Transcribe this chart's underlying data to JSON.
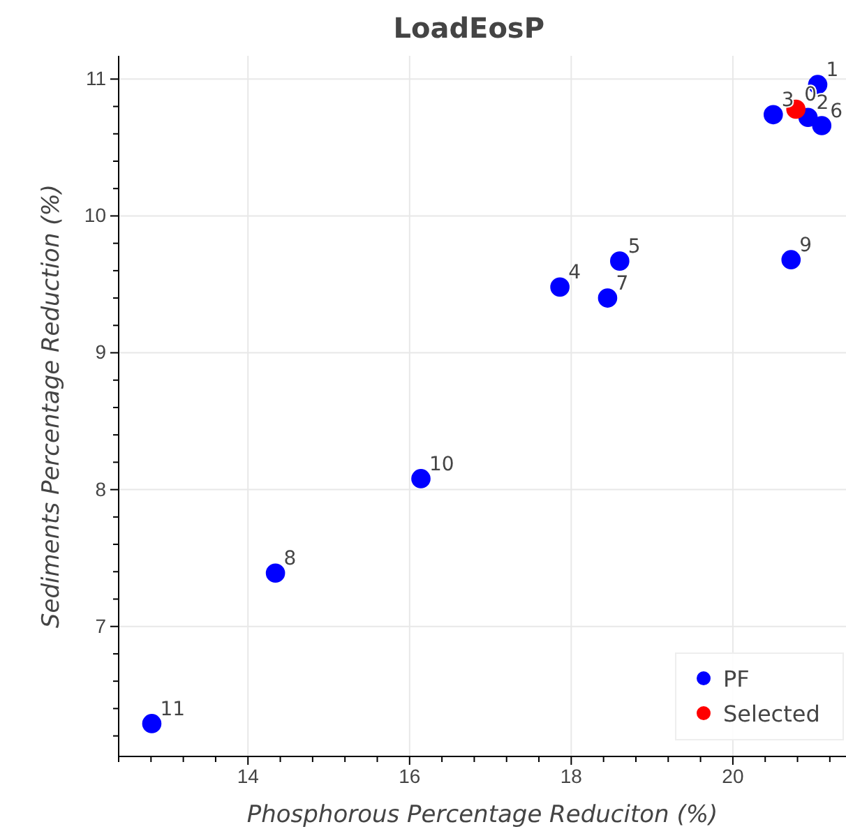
{
  "chart_data": {
    "type": "scatter",
    "title": "LoadEosP",
    "xlabel": "Phosphorous Percentage Reduciton (%)",
    "ylabel": "Sediments Percentage Reduction (%)",
    "xlim": [
      12.4,
      21.4
    ],
    "ylim": [
      6.05,
      11.17
    ],
    "xticks": [
      {
        "value": 12.4,
        "label": null
      },
      {
        "value": 12.8,
        "label": null
      },
      {
        "value": 13.2,
        "label": null
      },
      {
        "value": 13.6,
        "label": null
      },
      14,
      {
        "value": 14.4,
        "label": null
      },
      {
        "value": 14.8,
        "label": null
      },
      {
        "value": 15.2,
        "label": null
      },
      {
        "value": 15.6,
        "label": null
      },
      16,
      {
        "value": 16.4,
        "label": null
      },
      {
        "value": 16.8,
        "label": null
      },
      {
        "value": 17.2,
        "label": null
      },
      {
        "value": 17.6,
        "label": null
      },
      18,
      {
        "value": 18.4,
        "label": null
      },
      {
        "value": 18.8,
        "label": null
      },
      {
        "value": 19.2,
        "label": null
      },
      {
        "value": 19.6,
        "label": null
      },
      20,
      {
        "value": 20.4,
        "label": null
      },
      {
        "value": 20.8,
        "label": null
      },
      {
        "value": 21.2,
        "label": null
      }
    ],
    "yticks": [
      {
        "value": 6.2,
        "label": null
      },
      {
        "value": 6.4,
        "label": null
      },
      {
        "value": 6.6,
        "label": null
      },
      {
        "value": 6.8,
        "label": null
      },
      7,
      {
        "value": 7.2,
        "label": null
      },
      {
        "value": 7.4,
        "label": null
      },
      {
        "value": 7.6,
        "label": null
      },
      {
        "value": 7.8,
        "label": null
      },
      8,
      {
        "value": 8.2,
        "label": null
      },
      {
        "value": 8.4,
        "label": null
      },
      {
        "value": 8.6,
        "label": null
      },
      {
        "value": 8.8,
        "label": null
      },
      9,
      {
        "value": 9.2,
        "label": null
      },
      {
        "value": 9.4,
        "label": null
      },
      {
        "value": 9.6,
        "label": null
      },
      {
        "value": 9.8,
        "label": null
      },
      10,
      {
        "value": 10.2,
        "label": null
      },
      {
        "value": 10.4,
        "label": null
      },
      {
        "value": 10.6,
        "label": null
      },
      {
        "value": 10.8,
        "label": null
      },
      11
    ],
    "grid": true,
    "legend": "bottom right",
    "marker": "circle",
    "series": [
      {
        "name": "PF",
        "color": "#0000ff",
        "x": [
          21.05,
          20.93,
          20.5,
          17.86,
          18.6,
          21.1,
          18.45,
          14.34,
          20.72,
          16.14,
          12.81
        ],
        "values": [
          10.96,
          10.72,
          10.74,
          9.48,
          9.67,
          10.66,
          9.4,
          7.39,
          9.68,
          8.08,
          6.29
        ]
      },
      {
        "name": "Selected",
        "color": "#ff0000",
        "x": [
          20.78
        ],
        "values": [
          10.78
        ]
      }
    ],
    "annotations": [
      {
        "text": "0",
        "x": 20.78,
        "y": 10.78
      },
      {
        "text": "1",
        "x": 21.05,
        "y": 10.96
      },
      {
        "text": "2",
        "x": 20.93,
        "y": 10.72
      },
      {
        "text": "3",
        "x": 20.5,
        "y": 10.74
      },
      {
        "text": "4",
        "x": 17.86,
        "y": 9.48
      },
      {
        "text": "5",
        "x": 18.6,
        "y": 9.67
      },
      {
        "text": "6",
        "x": 21.1,
        "y": 10.66
      },
      {
        "text": "7",
        "x": 18.45,
        "y": 9.4
      },
      {
        "text": "8",
        "x": 14.34,
        "y": 7.39
      },
      {
        "text": "9",
        "x": 20.72,
        "y": 9.68
      },
      {
        "text": "10",
        "x": 16.14,
        "y": 8.08
      },
      {
        "text": "11",
        "x": 12.81,
        "y": 6.29
      }
    ]
  }
}
